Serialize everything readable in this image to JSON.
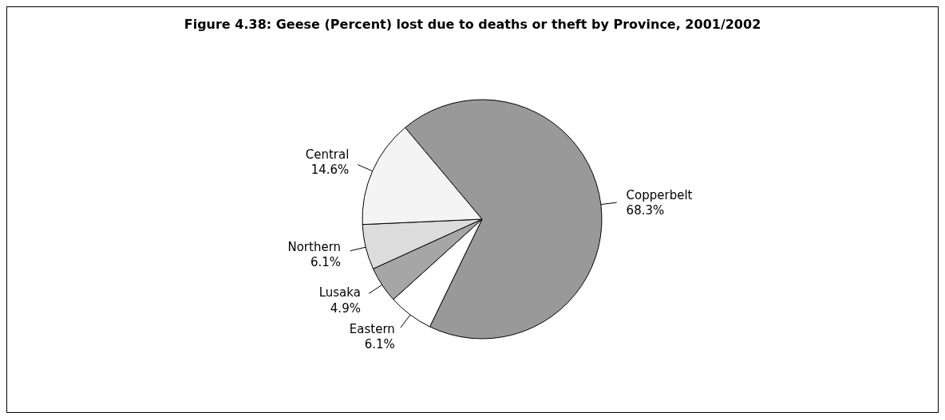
{
  "chart_data": {
    "type": "pie",
    "title": "Figure 4.38: Geese (Percent) lost due to deaths or theft by Province, 2001/2002",
    "categories": [
      "Copperbelt",
      "Eastern",
      "Lusaka",
      "Northern",
      "Central"
    ],
    "values": [
      68.3,
      6.1,
      4.9,
      6.1,
      14.6
    ],
    "value_labels": [
      "68.3%",
      "6.1%",
      "4.9%",
      "6.1%",
      "14.6%"
    ],
    "colors": [
      "#999999",
      "#ffffff",
      "#a6a6a6",
      "#dcdcdc",
      "#f4f4f4"
    ],
    "legend": false
  }
}
